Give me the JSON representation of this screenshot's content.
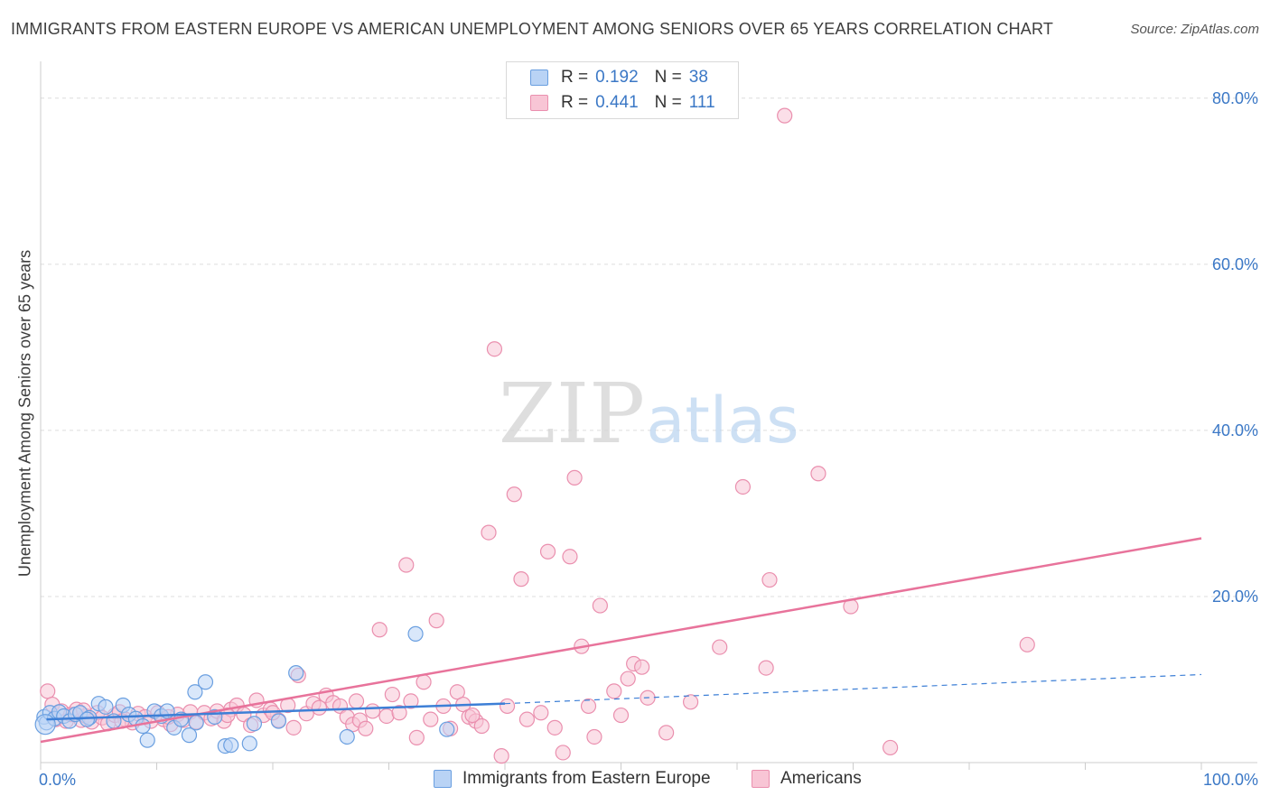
{
  "header": {
    "title": "IMMIGRANTS FROM EASTERN EUROPE VS AMERICAN UNEMPLOYMENT AMONG SENIORS OVER 65 YEARS CORRELATION CHART",
    "source": "Source: ZipAtlas.com"
  },
  "watermark": {
    "zip": "ZIP",
    "atlas": "atlas"
  },
  "legend": {
    "r_label": "R =",
    "n_label": "N =",
    "rows": [
      {
        "r": "0.192",
        "n": "38"
      },
      {
        "r": "0.441",
        "n": "111"
      }
    ]
  },
  "colors": {
    "blue_fill": "#b9d3f5",
    "blue_stroke": "#6a9fe0",
    "blue_line": "#3d7fd6",
    "pink_fill": "#f8c5d5",
    "pink_stroke": "#ea8fae",
    "pink_line": "#e8739b",
    "grid": "#dddddd",
    "tick_label": "#3b78c6"
  },
  "chart_data": {
    "type": "scatter",
    "title": "IMMIGRANTS FROM EASTERN EUROPE VS AMERICAN UNEMPLOYMENT AMONG SENIORS OVER 65 YEARS CORRELATION CHART",
    "xlabel": "",
    "ylabel": "Unemployment Among Seniors over 65 years",
    "xlim": [
      0,
      100
    ],
    "ylim": [
      0,
      84
    ],
    "x_tick_labels": [
      "0.0%",
      "100.0%"
    ],
    "y_ticks": [
      20,
      40,
      60,
      80
    ],
    "y_tick_labels": [
      "20.0%",
      "40.0%",
      "60.0%",
      "80.0%"
    ],
    "grid": true,
    "legend_position": "top-center",
    "series": [
      {
        "name": "Immigrants from Eastern Europe",
        "r": 0.192,
        "n": 38,
        "trend": {
          "solid": [
            [
              0.5,
              5.2
            ],
            [
              40,
              7.1
            ]
          ],
          "dashed": [
            [
              40,
              7.1
            ],
            [
              100,
              10.6
            ]
          ]
        },
        "points": [
          [
            0.3,
            5.5
          ],
          [
            0.5,
            4.8
          ],
          [
            0.8,
            6.0
          ],
          [
            1.2,
            5.3
          ],
          [
            1.6,
            6.1
          ],
          [
            2.0,
            5.6
          ],
          [
            2.5,
            5.0
          ],
          [
            3.0,
            5.8
          ],
          [
            3.4,
            6.0
          ],
          [
            4.2,
            5.4
          ],
          [
            5.0,
            7.1
          ],
          [
            5.6,
            6.7
          ],
          [
            6.3,
            5.0
          ],
          [
            7.1,
            6.9
          ],
          [
            7.6,
            5.8
          ],
          [
            8.2,
            5.3
          ],
          [
            8.8,
            4.4
          ],
          [
            9.2,
            2.7
          ],
          [
            9.8,
            6.2
          ],
          [
            10.4,
            5.6
          ],
          [
            10.9,
            6.2
          ],
          [
            11.5,
            4.2
          ],
          [
            12.1,
            5.2
          ],
          [
            12.8,
            3.3
          ],
          [
            13.4,
            4.8
          ],
          [
            13.3,
            8.5
          ],
          [
            14.2,
            9.7
          ],
          [
            15.9,
            2.0
          ],
          [
            16.4,
            2.1
          ],
          [
            18.0,
            2.3
          ],
          [
            18.4,
            4.7
          ],
          [
            20.5,
            5.0
          ],
          [
            22.0,
            10.8
          ],
          [
            26.4,
            3.1
          ],
          [
            32.3,
            15.5
          ],
          [
            35.0,
            4.0
          ],
          [
            4.0,
            5.2
          ],
          [
            15.0,
            5.5
          ]
        ]
      },
      {
        "name": "Americans",
        "r": 0.441,
        "n": 111,
        "trend": {
          "solid": [
            [
              0,
              2.5
            ],
            [
              100,
              27.0
            ]
          ]
        },
        "points": [
          [
            0.6,
            8.6
          ],
          [
            1.0,
            7.0
          ],
          [
            1.3,
            5.2
          ],
          [
            1.8,
            6.2
          ],
          [
            2.2,
            5.0
          ],
          [
            2.6,
            5.8
          ],
          [
            3.1,
            6.4
          ],
          [
            3.5,
            5.1
          ],
          [
            3.9,
            5.6
          ],
          [
            4.4,
            4.9
          ],
          [
            4.9,
            6.0
          ],
          [
            5.3,
            5.4
          ],
          [
            5.8,
            4.7
          ],
          [
            6.4,
            5.7
          ],
          [
            6.8,
            6.1
          ],
          [
            7.3,
            5.2
          ],
          [
            7.9,
            4.8
          ],
          [
            8.4,
            5.9
          ],
          [
            9.0,
            5.5
          ],
          [
            9.5,
            5.0
          ],
          [
            10.1,
            6.0
          ],
          [
            10.6,
            5.2
          ],
          [
            11.2,
            4.6
          ],
          [
            11.8,
            5.8
          ],
          [
            12.3,
            5.1
          ],
          [
            12.9,
            6.1
          ],
          [
            13.4,
            4.9
          ],
          [
            14.1,
            6.0
          ],
          [
            14.7,
            5.3
          ],
          [
            15.2,
            6.2
          ],
          [
            15.8,
            5.0
          ],
          [
            16.4,
            6.4
          ],
          [
            16.9,
            6.9
          ],
          [
            17.5,
            5.8
          ],
          [
            18.1,
            4.5
          ],
          [
            18.6,
            7.5
          ],
          [
            19.2,
            5.7
          ],
          [
            19.8,
            6.4
          ],
          [
            20.5,
            5.1
          ],
          [
            21.3,
            6.9
          ],
          [
            21.8,
            4.2
          ],
          [
            22.2,
            10.5
          ],
          [
            22.9,
            5.9
          ],
          [
            23.5,
            7.1
          ],
          [
            24.0,
            6.6
          ],
          [
            24.6,
            8.1
          ],
          [
            25.2,
            7.2
          ],
          [
            25.8,
            6.8
          ],
          [
            26.4,
            5.5
          ],
          [
            26.9,
            4.6
          ],
          [
            27.5,
            5.1
          ],
          [
            28.0,
            4.1
          ],
          [
            28.6,
            6.2
          ],
          [
            29.2,
            16.0
          ],
          [
            29.8,
            5.6
          ],
          [
            30.3,
            8.2
          ],
          [
            30.9,
            6.0
          ],
          [
            31.5,
            23.8
          ],
          [
            31.9,
            7.4
          ],
          [
            32.4,
            3.0
          ],
          [
            33.0,
            9.7
          ],
          [
            33.6,
            5.2
          ],
          [
            34.1,
            17.1
          ],
          [
            34.7,
            6.8
          ],
          [
            35.3,
            4.1
          ],
          [
            35.9,
            8.5
          ],
          [
            36.4,
            7.0
          ],
          [
            36.9,
            5.5
          ],
          [
            37.5,
            5.0
          ],
          [
            38.0,
            4.4
          ],
          [
            38.6,
            27.7
          ],
          [
            39.1,
            49.8
          ],
          [
            39.7,
            0.8
          ],
          [
            40.2,
            6.8
          ],
          [
            40.8,
            32.3
          ],
          [
            41.4,
            22.1
          ],
          [
            41.9,
            5.2
          ],
          [
            43.1,
            6.0
          ],
          [
            43.7,
            25.4
          ],
          [
            44.3,
            4.2
          ],
          [
            45.0,
            1.2
          ],
          [
            45.6,
            24.8
          ],
          [
            46.0,
            34.3
          ],
          [
            46.6,
            14.0
          ],
          [
            47.2,
            6.8
          ],
          [
            47.7,
            3.1
          ],
          [
            48.2,
            18.9
          ],
          [
            49.4,
            8.6
          ],
          [
            50.0,
            5.7
          ],
          [
            50.6,
            10.1
          ],
          [
            51.1,
            11.9
          ],
          [
            51.8,
            11.5
          ],
          [
            52.3,
            7.8
          ],
          [
            53.9,
            3.6
          ],
          [
            56.0,
            7.3
          ],
          [
            58.5,
            13.9
          ],
          [
            60.5,
            33.2
          ],
          [
            62.5,
            11.4
          ],
          [
            62.8,
            22.0
          ],
          [
            64.1,
            77.9
          ],
          [
            67.0,
            34.8
          ],
          [
            69.8,
            18.8
          ],
          [
            73.2,
            1.8
          ],
          [
            85.0,
            14.2
          ],
          [
            3.7,
            6.3
          ],
          [
            7.0,
            5.0
          ],
          [
            11.0,
            5.5
          ],
          [
            16.1,
            5.7
          ],
          [
            20.0,
            6.0
          ],
          [
            27.2,
            7.4
          ],
          [
            37.2,
            5.7
          ]
        ]
      }
    ]
  },
  "bottom_legend": {
    "items": [
      "Immigrants from Eastern Europe",
      "Americans"
    ]
  }
}
